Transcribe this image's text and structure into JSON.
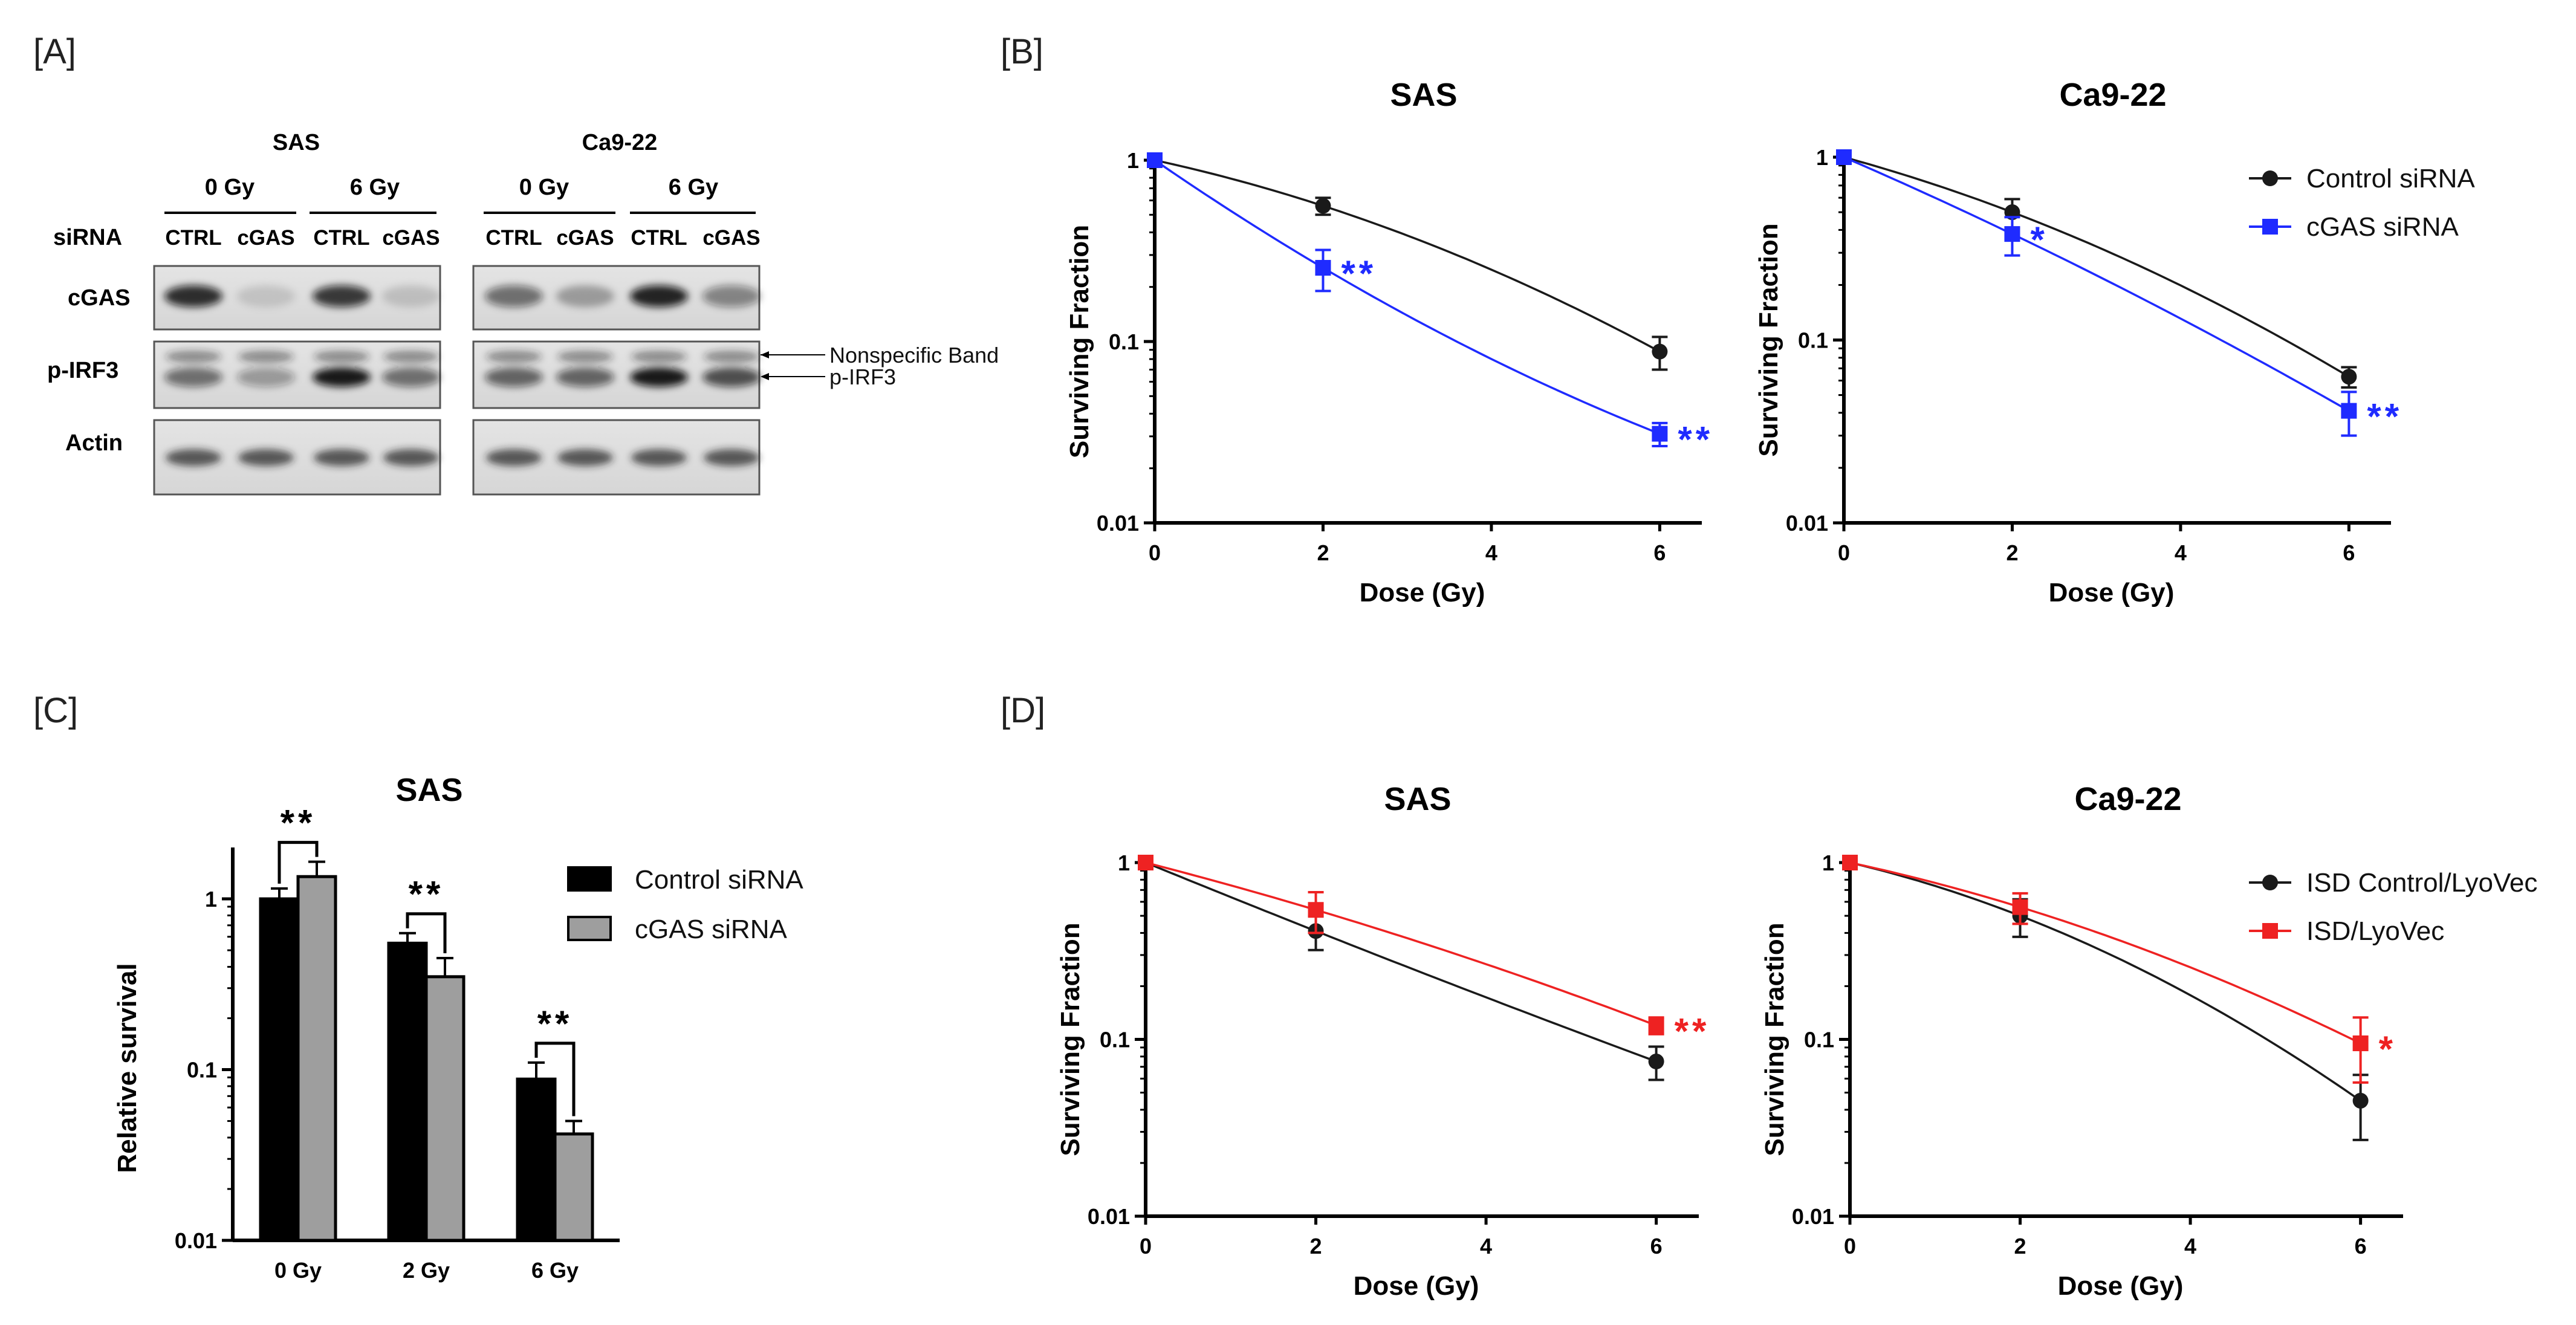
{
  "panels": {
    "a": "[A]",
    "b": "[B]",
    "c": "[C]",
    "d": "[D]"
  },
  "blot": {
    "lines": [
      "SAS",
      "Ca9-22"
    ],
    "doses": [
      "0 Gy",
      "6 Gy",
      "0 Gy",
      "6 Gy"
    ],
    "sirna_label": "siRNA",
    "lanes": [
      "CTRL",
      "cGAS",
      "CTRL",
      "cGAS",
      "CTRL",
      "cGAS",
      "CTRL",
      "cGAS"
    ],
    "rows": [
      "cGAS",
      "p-IRF3",
      "Actin"
    ],
    "annotations": [
      "Nonspecific Band",
      "p-IRF3"
    ]
  },
  "colors": {
    "control": "#1a1a1a",
    "cgas": "#1f2bff",
    "isd": "#ee2222",
    "bar_control": "#000000",
    "bar_cgas": "#9e9e9e"
  },
  "chart_data": [
    {
      "id": "B-SAS",
      "type": "line",
      "title": "SAS",
      "xlabel": "Dose (Gy)",
      "ylabel": "Surviving Fraction",
      "yscale": "log",
      "xlim": [
        0,
        6.5
      ],
      "ylim": [
        0.01,
        1
      ],
      "xticks": [
        "0",
        "2",
        "4",
        "6"
      ],
      "yticks": [
        "0.01",
        "0.1",
        "1"
      ],
      "legend": "none",
      "series": [
        {
          "name": "Control siRNA",
          "color": "control",
          "marker": "circle",
          "x": [
            0,
            2,
            6
          ],
          "y": [
            1.0,
            0.56,
            0.088
          ],
          "err": [
            0.02,
            0.06,
            0.018
          ]
        },
        {
          "name": "cGAS siRNA",
          "color": "cgas",
          "marker": "square",
          "x": [
            0,
            2,
            6
          ],
          "y": [
            1.0,
            0.255,
            0.031
          ],
          "err": [
            0.02,
            0.065,
            0.0045
          ]
        }
      ],
      "significance": [
        {
          "x": 2,
          "y": 0.255,
          "label": "**",
          "color": "cgas"
        },
        {
          "x": 6,
          "y": 0.031,
          "label": "**",
          "color": "cgas"
        }
      ]
    },
    {
      "id": "B-Ca9-22",
      "type": "line",
      "title": "Ca9-22",
      "xlabel": "Dose (Gy)",
      "ylabel": "Surviving Fraction",
      "yscale": "log",
      "xlim": [
        0,
        6.5
      ],
      "ylim": [
        0.01,
        1
      ],
      "xticks": [
        "0",
        "2",
        "4",
        "6"
      ],
      "yticks": [
        "0.01",
        "0.1",
        "1"
      ],
      "legend": "top-right",
      "series": [
        {
          "name": "Control siRNA",
          "color": "control",
          "marker": "circle",
          "x": [
            0,
            2,
            6
          ],
          "y": [
            1.0,
            0.5,
            0.063
          ],
          "err": [
            0.02,
            0.09,
            0.008
          ]
        },
        {
          "name": "cGAS siRNA",
          "color": "cgas",
          "marker": "square",
          "x": [
            0,
            2,
            6
          ],
          "y": [
            1.0,
            0.38,
            0.041
          ],
          "err": [
            0.02,
            0.09,
            0.011
          ]
        }
      ],
      "significance": [
        {
          "x": 2,
          "y": 0.38,
          "label": "*",
          "color": "cgas"
        },
        {
          "x": 6,
          "y": 0.041,
          "label": "**",
          "color": "cgas"
        }
      ]
    },
    {
      "id": "C-SAS",
      "type": "bar",
      "title": "SAS",
      "xlabel": "",
      "ylabel": "Relative survival",
      "yscale": "log",
      "ylim": [
        0.01,
        2
      ],
      "yticks": [
        "0.01",
        "0.1",
        "1"
      ],
      "categories": [
        "0 Gy",
        "2 Gy",
        "6 Gy"
      ],
      "legend": "right",
      "series": [
        {
          "name": "Control siRNA",
          "color": "bar_control",
          "values": [
            1.0,
            0.55,
            0.088
          ],
          "err": [
            0.15,
            0.08,
            0.022
          ]
        },
        {
          "name": "cGAS siRNA",
          "color": "bar_cgas",
          "values": [
            1.35,
            0.35,
            0.042
          ],
          "err": [
            0.3,
            0.1,
            0.008
          ]
        }
      ],
      "significance": [
        "**",
        "**",
        "**"
      ]
    },
    {
      "id": "D-SAS",
      "type": "line",
      "title": "SAS",
      "xlabel": "Dose (Gy)",
      "ylabel": "Surviving Fraction",
      "yscale": "log",
      "xlim": [
        0,
        6.5
      ],
      "ylim": [
        0.01,
        1
      ],
      "xticks": [
        "0",
        "2",
        "4",
        "6"
      ],
      "yticks": [
        "0.01",
        "0.1",
        "1"
      ],
      "legend": "none",
      "series": [
        {
          "name": "ISD Control/LyoVec",
          "color": "control",
          "marker": "circle",
          "x": [
            0,
            2,
            6
          ],
          "y": [
            1.0,
            0.41,
            0.075
          ],
          "err": [
            0.02,
            0.09,
            0.016
          ]
        },
        {
          "name": "ISD/LyoVec",
          "color": "isd",
          "marker": "square",
          "x": [
            0,
            2,
            6
          ],
          "y": [
            1.0,
            0.54,
            0.12
          ],
          "err": [
            0.02,
            0.14,
            0.013
          ]
        }
      ],
      "significance": [
        {
          "x": 6,
          "y": 0.12,
          "label": "**",
          "color": "isd"
        }
      ]
    },
    {
      "id": "D-Ca9-22",
      "type": "line",
      "title": "Ca9-22",
      "xlabel": "Dose (Gy)",
      "ylabel": "Surviving Fraction",
      "yscale": "log",
      "xlim": [
        0,
        6.5
      ],
      "ylim": [
        0.01,
        1
      ],
      "xticks": [
        "0",
        "2",
        "4",
        "6"
      ],
      "yticks": [
        "0.01",
        "0.1",
        "1"
      ],
      "legend": "top-right",
      "series": [
        {
          "name": "ISD Control/LyoVec",
          "color": "control",
          "marker": "circle",
          "x": [
            0,
            2,
            6
          ],
          "y": [
            1.0,
            0.5,
            0.045
          ],
          "err": [
            0.02,
            0.12,
            0.018
          ]
        },
        {
          "name": "ISD/LyoVec",
          "color": "isd",
          "marker": "square",
          "x": [
            0,
            2,
            6
          ],
          "y": [
            1.0,
            0.56,
            0.095
          ],
          "err": [
            0.02,
            0.11,
            0.038
          ]
        }
      ],
      "significance": [
        {
          "x": 6,
          "y": 0.095,
          "label": "*",
          "color": "isd"
        }
      ]
    }
  ]
}
